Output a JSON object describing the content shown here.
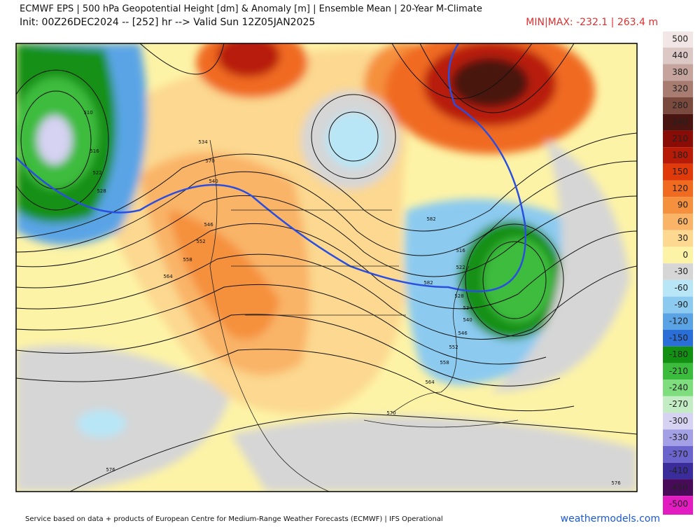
{
  "header": {
    "title": "ECMWF EPS | 500 hPa Geopotential Height [dm] & Anomaly [m] | Ensemble Mean | 20-Year M-Climate",
    "init": "Init: 00Z26DEC2024 -- [252] hr --> Valid Sun 12Z05JAN2025",
    "minmax": "MIN|MAX: -232.1 | 263.4 m"
  },
  "colorbar": {
    "ticks": [
      500,
      440,
      380,
      320,
      280,
      240,
      210,
      180,
      150,
      120,
      90,
      60,
      30,
      0,
      -30,
      -60,
      -90,
      -120,
      -150,
      -180,
      -210,
      -240,
      -270,
      -300,
      -330,
      -370,
      -410,
      -450,
      -500
    ],
    "colors": [
      "#f2e6e6",
      "#dcc8c4",
      "#c4a49c",
      "#a87c70",
      "#7a4a3e",
      "#4a1410",
      "#8a0c06",
      "#b81a08",
      "#e03a0a",
      "#f06a20",
      "#f5903e",
      "#f9b468",
      "#fcd890",
      "#fdf3a6",
      "#d6d6d6",
      "#b8e6f6",
      "#8ccaf0",
      "#5aa4e6",
      "#2a6ed8",
      "#129012",
      "#3cbc3c",
      "#7ede7e",
      "#c4ecc4",
      "#d6d2f2",
      "#a4a0e6",
      "#6a64cc",
      "#3a2c9a",
      "#4a0a5a",
      "#e21cc0"
    ]
  },
  "contours": [
    510,
    516,
    522,
    528,
    534,
    540,
    546,
    552,
    558,
    564,
    570,
    576,
    582,
    582,
    516,
    522,
    528,
    534,
    540,
    546,
    552,
    558,
    564,
    570,
    576
  ],
  "footer": {
    "credit": "Service based on data + products of European Centre for Medium-Range Weather Forecasts (ECMWF) | IFS Operational",
    "site": "weathermodels.com"
  }
}
